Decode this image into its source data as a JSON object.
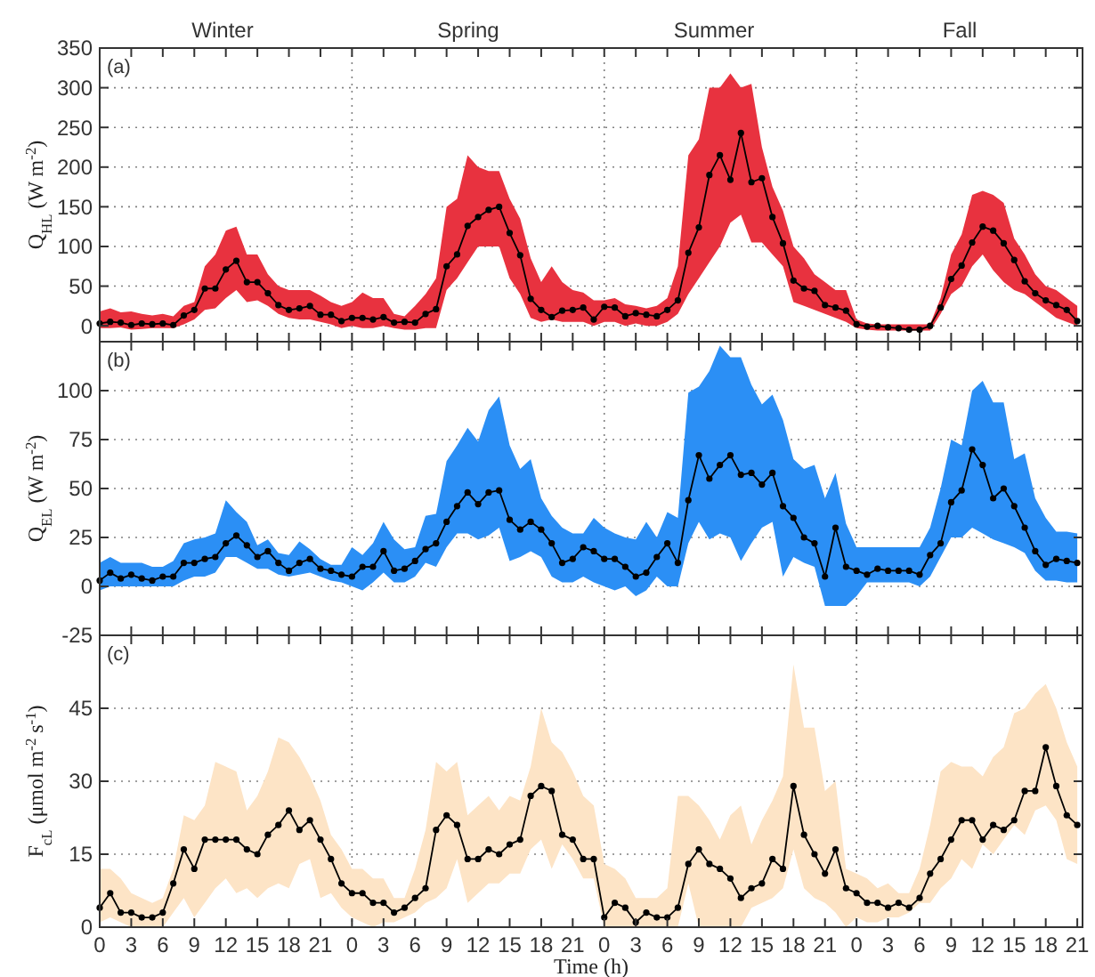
{
  "chart_data": [
    {
      "type": "line",
      "annotations": [
        "(a)",
        "Winter",
        "Spring",
        "Summer",
        "Fall"
      ],
      "ylabel": "Q$_{HL}$ (W m$^{-2}$)",
      "grid": true,
      "tick_labels": "y",
      "marker": "circle",
      "line_style": "solid",
      "ylim": [
        -20,
        350
      ],
      "yticks": [
        0,
        50,
        100,
        150,
        200,
        250,
        300,
        350
      ],
      "categories": [
        "0",
        null,
        null,
        "3",
        null,
        null,
        "6",
        null,
        null,
        "9",
        null,
        null,
        "12",
        null,
        null,
        "15",
        null,
        null,
        "18",
        null,
        null,
        "21",
        null,
        null,
        "0",
        null,
        null,
        "3",
        null,
        null,
        "6",
        null,
        null,
        "9",
        null,
        null,
        "12",
        null,
        null,
        "15",
        null,
        null,
        "18",
        null,
        null,
        "21",
        null,
        null,
        "0",
        null,
        null,
        "3",
        null,
        null,
        "6",
        null,
        null,
        "9",
        null,
        null,
        "12",
        null,
        null,
        "15",
        null,
        null,
        "18",
        null,
        null,
        "21",
        null,
        null,
        "0",
        null,
        null,
        "3",
        null,
        null,
        "6",
        null,
        null,
        "9",
        null,
        null,
        "12",
        null,
        null,
        "15",
        null,
        null,
        "18",
        null,
        null,
        "21"
      ],
      "series": [
        {
          "color": "#000000",
          "values": [
            3,
            5,
            4,
            1,
            3,
            2,
            3,
            1,
            13,
            20,
            47,
            47,
            71,
            82,
            55,
            55,
            41,
            26,
            20,
            22,
            25,
            14,
            14,
            6,
            10,
            10,
            8,
            11,
            4,
            5,
            4,
            15,
            21,
            75,
            90,
            126,
            137,
            146,
            150,
            117,
            89,
            34,
            20,
            11,
            19,
            20,
            23,
            8,
            24,
            23,
            12,
            16,
            14,
            12,
            20,
            32,
            92,
            124,
            190,
            215,
            184,
            243,
            181,
            186,
            137,
            104,
            57,
            47,
            44,
            26,
            23,
            19,
            2,
            -1,
            0,
            -2,
            -3,
            -5,
            -5,
            0,
            23,
            59,
            76,
            105,
            125,
            120,
            104,
            83,
            56,
            41,
            32,
            26,
            20,
            6
          ],
          "upper": [
            18,
            22,
            17,
            18,
            15,
            13,
            15,
            12,
            25,
            30,
            75,
            90,
            120,
            125,
            90,
            90,
            65,
            50,
            45,
            45,
            45,
            38,
            30,
            25,
            30,
            42,
            35,
            35,
            15,
            12,
            25,
            40,
            60,
            150,
            160,
            215,
            200,
            195,
            195,
            160,
            135,
            85,
            55,
            75,
            55,
            45,
            42,
            32,
            32,
            35,
            27,
            25,
            22,
            25,
            35,
            75,
            215,
            235,
            300,
            300,
            318,
            300,
            305,
            225,
            175,
            145,
            100,
            85,
            65,
            55,
            45,
            45,
            8,
            3,
            2,
            2,
            2,
            2,
            2,
            2,
            35,
            90,
            115,
            165,
            170,
            165,
            155,
            110,
            90,
            65,
            50,
            45,
            35,
            25
          ],
          "lower": [
            -3,
            -3,
            -2,
            -5,
            -4,
            -3,
            -3,
            -3,
            2,
            8,
            20,
            22,
            35,
            45,
            30,
            32,
            25,
            15,
            10,
            8,
            8,
            5,
            2,
            -3,
            0,
            -3,
            -3,
            0,
            -3,
            -5,
            -5,
            -3,
            -3,
            45,
            60,
            80,
            100,
            100,
            100,
            60,
            40,
            10,
            5,
            8,
            5,
            5,
            5,
            0,
            5,
            5,
            0,
            3,
            0,
            0,
            5,
            15,
            40,
            60,
            80,
            100,
            130,
            140,
            105,
            105,
            90,
            75,
            30,
            25,
            20,
            15,
            10,
            5,
            -3,
            -5,
            -6,
            -6,
            -6,
            -6,
            -6,
            -6,
            15,
            40,
            50,
            75,
            90,
            70,
            55,
            45,
            40,
            30,
            20,
            10,
            5,
            0
          ]
        }
      ]
    },
    {
      "type": "line",
      "annotations": [
        "(b)"
      ],
      "ylabel": "Q$_{EL}$ (W m$^{-2}$)",
      "grid": true,
      "tick_labels": "y",
      "marker": "circle",
      "line_style": "solid",
      "ylim": [
        -25,
        125
      ],
      "yticks": [
        -25,
        0,
        25,
        50,
        75,
        100
      ],
      "categories": [
        "0",
        null,
        null,
        "3",
        null,
        null,
        "6",
        null,
        null,
        "9",
        null,
        null,
        "12",
        null,
        null,
        "15",
        null,
        null,
        "18",
        null,
        null,
        "21",
        null,
        null,
        "0",
        null,
        null,
        "3",
        null,
        null,
        "6",
        null,
        null,
        "9",
        null,
        null,
        "12",
        null,
        null,
        "15",
        null,
        null,
        "18",
        null,
        null,
        "21",
        null,
        null,
        "0",
        null,
        null,
        "3",
        null,
        null,
        "6",
        null,
        null,
        "9",
        null,
        null,
        "12",
        null,
        null,
        "15",
        null,
        null,
        "18",
        null,
        null,
        "21",
        null,
        null,
        "0",
        null,
        null,
        "3",
        null,
        null,
        "6",
        null,
        null,
        "9",
        null,
        null,
        "12",
        null,
        null,
        "15",
        null,
        null,
        "18",
        null,
        null,
        "21"
      ],
      "series": [
        {
          "color": "#000000",
          "values": [
            3,
            7,
            4,
            6,
            4,
            3,
            5,
            5,
            12,
            12,
            14,
            15,
            22,
            26,
            21,
            15,
            18,
            12,
            8,
            12,
            14,
            9,
            8,
            6,
            5,
            10,
            10,
            18,
            8,
            9,
            13,
            19,
            22,
            33,
            41,
            48,
            42,
            48,
            49,
            34,
            29,
            33,
            29,
            22,
            12,
            14,
            20,
            18,
            14,
            14,
            10,
            5,
            7,
            15,
            22,
            12,
            44,
            67,
            55,
            62,
            67,
            57,
            58,
            52,
            58,
            41,
            35,
            25,
            22,
            5,
            30,
            10,
            8,
            6,
            9,
            8,
            8,
            8,
            6,
            16,
            22,
            43,
            49,
            70,
            62,
            45,
            50,
            41,
            30,
            18,
            11,
            14,
            13,
            12
          ],
          "upper": [
            12,
            15,
            12,
            12,
            12,
            10,
            10,
            13,
            22,
            24,
            25,
            27,
            44,
            38,
            33,
            21,
            24,
            17,
            16,
            23,
            19,
            14,
            11,
            11,
            20,
            16,
            22,
            33,
            24,
            19,
            20,
            36,
            37,
            64,
            72,
            81,
            74,
            90,
            97,
            72,
            60,
            65,
            45,
            36,
            30,
            27,
            27,
            35,
            30,
            27,
            25,
            24,
            33,
            25,
            38,
            35,
            99,
            102,
            110,
            123,
            117,
            117,
            103,
            93,
            98,
            85,
            65,
            60,
            62,
            45,
            58,
            32,
            20,
            20,
            20,
            20,
            20,
            20,
            20,
            30,
            50,
            75,
            72,
            100,
            105,
            94,
            94,
            65,
            68,
            45,
            35,
            28,
            28,
            27
          ],
          "lower": [
            -2,
            0,
            0,
            0,
            0,
            0,
            0,
            0,
            3,
            5,
            5,
            7,
            15,
            15,
            12,
            9,
            9,
            6,
            5,
            6,
            7,
            5,
            3,
            2,
            0,
            -2,
            2,
            7,
            2,
            2,
            5,
            12,
            10,
            20,
            27,
            27,
            24,
            26,
            30,
            13,
            15,
            18,
            15,
            5,
            2,
            2,
            5,
            2,
            0,
            -2,
            0,
            -5,
            -2,
            5,
            0,
            0,
            22,
            33,
            24,
            27,
            25,
            13,
            22,
            30,
            33,
            5,
            15,
            12,
            10,
            -10,
            -10,
            -10,
            -5,
            2,
            2,
            2,
            2,
            2,
            0,
            5,
            15,
            25,
            25,
            30,
            27,
            24,
            22,
            20,
            17,
            8,
            3,
            3,
            2,
            2
          ]
        }
      ]
    },
    {
      "type": "line",
      "annotations": [
        "(c)"
      ],
      "ylabel": "F$_{cL}$ (μmol m$^{-2}$ s$^{-1}$)",
      "xlabel": "Time (h)",
      "grid": true,
      "marker": "circle",
      "line_style": "solid",
      "ylim": [
        0,
        60
      ],
      "yticks": [
        0,
        15,
        30,
        45
      ],
      "categories": [
        "0",
        null,
        null,
        "3",
        null,
        null,
        "6",
        null,
        null,
        "9",
        null,
        null,
        "12",
        null,
        null,
        "15",
        null,
        null,
        "18",
        null,
        null,
        "21",
        null,
        null,
        "0",
        null,
        null,
        "3",
        null,
        null,
        "6",
        null,
        null,
        "9",
        null,
        null,
        "12",
        null,
        null,
        "15",
        null,
        null,
        "18",
        null,
        null,
        "21",
        null,
        null,
        "0",
        null,
        null,
        "3",
        null,
        null,
        "6",
        null,
        null,
        "9",
        null,
        null,
        "12",
        null,
        null,
        "15",
        null,
        null,
        "18",
        null,
        null,
        "21",
        null,
        null,
        "0",
        null,
        null,
        "3",
        null,
        null,
        "6",
        null,
        null,
        "9",
        null,
        null,
        "12",
        null,
        null,
        "15",
        null,
        null,
        "18",
        null,
        null,
        "21"
      ],
      "series": [
        {
          "color": "#000000",
          "values": [
            4,
            7,
            3,
            3,
            2,
            2,
            3,
            9,
            16,
            12,
            18,
            18,
            18,
            18,
            16,
            15,
            19,
            21,
            24,
            20,
            22,
            18,
            14,
            9,
            7,
            7,
            5,
            5,
            3,
            4,
            6,
            8,
            20,
            23,
            21,
            14,
            14,
            16,
            15,
            17,
            18,
            27,
            29,
            28,
            19,
            18,
            14,
            14,
            2,
            5,
            4,
            1,
            3,
            2,
            2,
            4,
            13,
            16,
            13,
            12,
            10,
            6,
            8,
            9,
            14,
            12,
            29,
            19,
            15,
            11,
            16,
            8,
            7,
            5,
            5,
            4,
            5,
            4,
            6,
            11,
            14,
            18,
            22,
            22,
            18,
            21,
            20,
            22,
            28,
            28,
            37,
            29,
            23,
            21
          ],
          "upper": [
            12,
            12,
            10,
            7,
            6,
            5,
            6,
            12,
            23,
            22,
            25,
            34,
            33,
            32,
            24,
            27,
            32,
            39,
            38,
            35,
            31,
            26,
            19,
            16,
            12,
            12,
            10,
            10,
            6,
            6,
            12,
            20,
            34,
            32,
            34,
            23,
            25,
            27,
            24,
            27,
            26,
            33,
            45,
            38,
            36,
            32,
            27,
            25,
            13,
            12,
            10,
            6,
            6,
            6,
            8,
            27,
            27,
            25,
            22,
            18,
            23,
            25,
            17,
            22,
            26,
            31,
            54,
            41,
            41,
            28,
            30,
            12,
            11,
            10,
            8,
            9,
            7,
            7,
            12,
            21,
            32,
            34,
            33,
            33,
            31,
            35,
            37,
            44,
            45,
            48,
            50,
            45,
            38,
            33
          ],
          "lower": [
            1,
            2,
            1,
            0,
            0,
            0,
            0,
            3,
            6,
            2,
            5,
            8,
            10,
            7,
            8,
            6,
            8,
            9,
            8,
            13,
            14,
            6,
            7,
            4,
            2,
            1,
            0,
            1,
            1,
            2,
            3,
            5,
            6,
            8,
            14,
            5,
            7,
            9,
            9,
            11,
            11,
            16,
            18,
            12,
            17,
            14,
            10,
            10,
            0,
            0,
            0,
            0,
            0,
            0,
            0,
            0,
            9,
            0,
            0,
            0,
            0,
            0,
            4,
            5,
            6,
            8,
            16,
            8,
            6,
            5,
            3,
            0,
            2,
            1,
            1,
            2,
            2,
            3,
            5,
            5,
            8,
            10,
            14,
            12,
            17,
            15,
            18,
            21,
            19,
            24,
            25,
            22,
            14,
            13
          ]
        }
      ]
    }
  ]
}
